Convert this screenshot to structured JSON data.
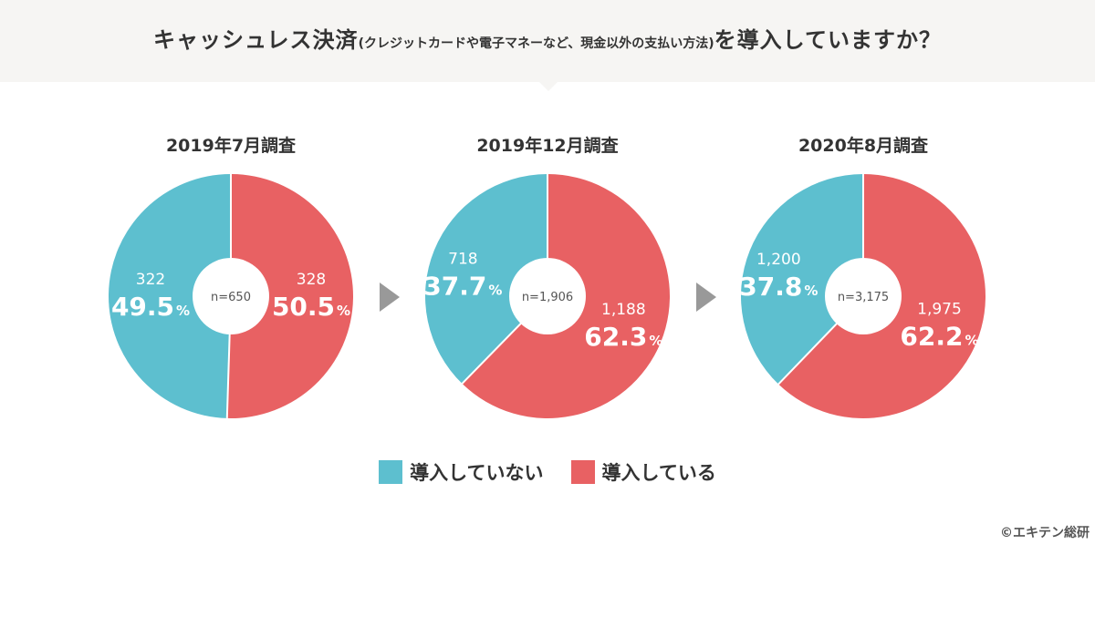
{
  "title": {
    "main_prefix": "キャッシュレス決済",
    "sub": "(クレジットカードや電子マネーなど、現金以外の支払い方法)",
    "main_suffix": "を導入していますか？"
  },
  "colors": {
    "not_adopted": "#5dbfcf",
    "adopted": "#e86163",
    "arrow": "#999999",
    "header_bg": "#f6f5f3"
  },
  "chart_data": {
    "type": "pie",
    "series_labels": [
      "導入していない",
      "導入している"
    ],
    "charts": [
      {
        "title": "2019年7月調査",
        "n_label": "n=650",
        "not_adopted": {
          "count": "322",
          "pct": "49.5",
          "value": 49.5
        },
        "adopted": {
          "count": "328",
          "pct": "50.5",
          "value": 50.5
        }
      },
      {
        "title": "2019年12月調査",
        "n_label": "n=1,906",
        "not_adopted": {
          "count": "718",
          "pct": "37.7",
          "value": 37.7
        },
        "adopted": {
          "count": "1,188",
          "pct": "62.3",
          "value": 62.3
        }
      },
      {
        "title": "2020年8月調査",
        "n_label": "n=3,175",
        "not_adopted": {
          "count": "1,200",
          "pct": "37.8",
          "value": 37.8
        },
        "adopted": {
          "count": "1,975",
          "pct": "62.2",
          "value": 62.2
        }
      }
    ],
    "pct_unit": "%"
  },
  "legend": {
    "not_adopted_label": "導入していない",
    "adopted_label": "導入している"
  },
  "copyright": "©エキテン総研"
}
